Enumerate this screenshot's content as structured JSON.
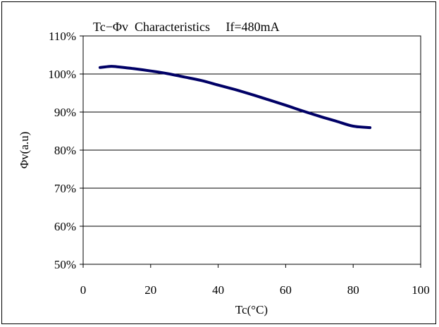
{
  "chart_data": {
    "type": "line",
    "title": "Tc−Φv  Characteristics     If=480mA",
    "xlabel": "Tc(°C)",
    "ylabel": "Φv(a.u)",
    "xlim": [
      0,
      100
    ],
    "ylim": [
      50,
      110
    ],
    "x_ticks": [
      0,
      20,
      40,
      60,
      80,
      100
    ],
    "x_tick_labels": [
      "0",
      "20",
      "40",
      "60",
      "80",
      "100"
    ],
    "y_ticks": [
      50,
      60,
      70,
      80,
      90,
      100,
      110
    ],
    "y_tick_labels": [
      "50%",
      "60%",
      "70%",
      "80%",
      "90%",
      "100%",
      "110%"
    ],
    "grid": "horizontal",
    "series": [
      {
        "color": "#000066",
        "x": [
          5,
          8,
          10,
          15,
          20,
          25,
          30,
          35,
          40,
          45,
          50,
          55,
          60,
          65,
          70,
          75,
          80,
          85
        ],
        "y": [
          101.7,
          102.0,
          101.9,
          101.4,
          100.8,
          100.1,
          99.2,
          98.3,
          97.1,
          95.9,
          94.6,
          93.2,
          91.8,
          90.3,
          88.9,
          87.6,
          86.3,
          85.9
        ]
      }
    ]
  }
}
